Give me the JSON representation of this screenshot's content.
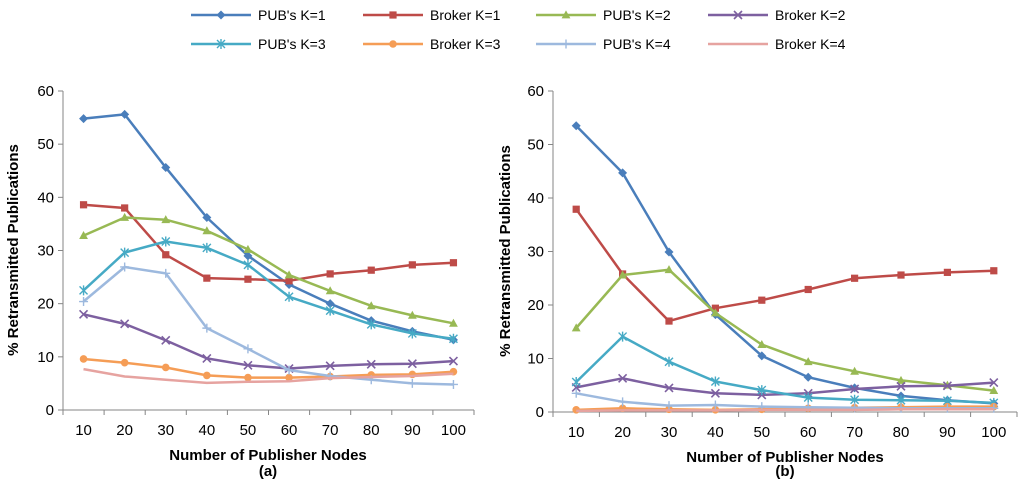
{
  "legend": [
    {
      "name": "PUB's K=1",
      "color": "#4a7ebb",
      "marker": "diamond"
    },
    {
      "name": "Broker K=1",
      "color": "#be4b48",
      "marker": "square"
    },
    {
      "name": "PUB's K=2",
      "color": "#98b954",
      "marker": "triangle"
    },
    {
      "name": "Broker K=2",
      "color": "#7d60a0",
      "marker": "x"
    },
    {
      "name": "PUB's K=3",
      "color": "#46aac5",
      "marker": "star"
    },
    {
      "name": "Broker K=3",
      "color": "#f59d56",
      "marker": "circle"
    },
    {
      "name": "PUB's K=4",
      "color": "#9db9de",
      "marker": "plus"
    },
    {
      "name": "Broker K=4",
      "color": "#e6a3a0",
      "marker": "none"
    }
  ],
  "chart_data": [
    {
      "type": "line",
      "caption": "(a)",
      "xlabel": "Number of Publisher Nodes",
      "ylabel": "% Retransmitted Publications",
      "x": [
        10,
        20,
        30,
        40,
        50,
        60,
        70,
        80,
        90,
        100
      ],
      "ylim": [
        0,
        60
      ],
      "yticks": [
        0,
        10,
        20,
        30,
        40,
        50,
        60
      ],
      "grid": false,
      "series": [
        {
          "name": "PUB's K=1",
          "values": [
            54.8,
            55.6,
            45.6,
            36.2,
            29.0,
            23.6,
            20.0,
            16.8,
            14.8,
            13.2
          ]
        },
        {
          "name": "Broker K=1",
          "values": [
            38.6,
            38.0,
            29.2,
            24.8,
            24.6,
            24.3,
            25.6,
            26.3,
            27.3,
            27.7
          ]
        },
        {
          "name": "PUB's K=2",
          "values": [
            32.8,
            36.2,
            35.8,
            33.7,
            30.2,
            25.4,
            22.4,
            19.6,
            17.8,
            16.3
          ]
        },
        {
          "name": "Broker K=2",
          "values": [
            18.0,
            16.2,
            13.1,
            9.7,
            8.4,
            7.8,
            8.3,
            8.6,
            8.7,
            9.2
          ]
        },
        {
          "name": "PUB's K=3",
          "values": [
            22.5,
            29.6,
            31.7,
            30.5,
            27.3,
            21.3,
            18.7,
            16.1,
            14.4,
            13.4
          ]
        },
        {
          "name": "Broker K=3",
          "values": [
            9.6,
            8.9,
            8.0,
            6.5,
            6.1,
            6.1,
            6.3,
            6.6,
            6.7,
            7.2
          ]
        },
        {
          "name": "PUB's K=4",
          "values": [
            20.4,
            26.9,
            25.7,
            15.4,
            11.5,
            7.5,
            6.4,
            5.7,
            5.0,
            4.8
          ]
        },
        {
          "name": "Broker K=4",
          "values": [
            7.7,
            6.3,
            5.7,
            5.1,
            5.3,
            5.4,
            6.0,
            6.2,
            6.4,
            6.8
          ]
        }
      ]
    },
    {
      "type": "line",
      "caption": "(b)",
      "xlabel": "Number of Publisher Nodes",
      "ylabel": "% Retransmitted Publications",
      "x": [
        10,
        20,
        30,
        40,
        50,
        60,
        70,
        80,
        90,
        100
      ],
      "ylim": [
        0,
        60
      ],
      "yticks": [
        0,
        10,
        20,
        30,
        40,
        50,
        60
      ],
      "grid": false,
      "series": [
        {
          "name": "PUB's K=1",
          "values": [
            53.5,
            44.7,
            29.9,
            18.2,
            10.5,
            6.5,
            4.5,
            3.0,
            2.2,
            1.6
          ]
        },
        {
          "name": "Broker K=1",
          "values": [
            37.9,
            25.8,
            17.0,
            19.4,
            20.9,
            22.9,
            25.0,
            25.6,
            26.1,
            26.4
          ]
        },
        {
          "name": "PUB's K=2",
          "values": [
            15.7,
            25.6,
            26.6,
            18.5,
            12.6,
            9.4,
            7.6,
            5.9,
            5.0,
            4.0
          ]
        },
        {
          "name": "Broker K=2",
          "values": [
            4.6,
            6.3,
            4.5,
            3.5,
            3.2,
            3.5,
            4.3,
            4.8,
            4.9,
            5.5
          ]
        },
        {
          "name": "PUB's K=3",
          "values": [
            5.6,
            14.1,
            9.4,
            5.7,
            4.1,
            2.7,
            2.3,
            2.2,
            2.1,
            1.7
          ]
        },
        {
          "name": "Broker K=3",
          "values": [
            0.4,
            0.7,
            0.5,
            0.4,
            0.5,
            0.7,
            0.8,
            0.9,
            1.0,
            1.0
          ]
        },
        {
          "name": "PUB's K=4",
          "values": [
            3.5,
            1.9,
            1.2,
            1.3,
            1.0,
            0.9,
            0.8,
            0.7,
            0.7,
            0.7
          ]
        },
        {
          "name": "Broker K=4",
          "values": [
            0.2,
            0.3,
            0.3,
            0.3,
            0.4,
            0.4,
            0.4,
            0.5,
            0.5,
            0.5
          ]
        }
      ]
    }
  ]
}
